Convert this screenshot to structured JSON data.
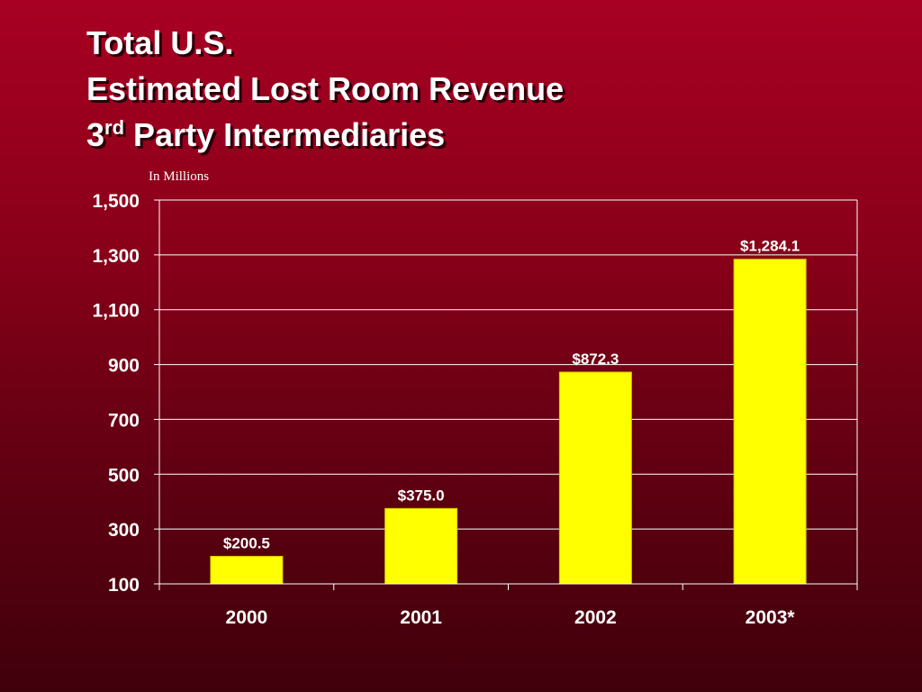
{
  "slide": {
    "title_line1": "Total U.S.",
    "title_line2": "Estimated Lost Room Revenue",
    "title_line3_prefix": "3",
    "title_line3_sup": "rd",
    "title_line3_rest": " Party Intermediaries",
    "units": "In Millions"
  },
  "chart_data": {
    "type": "bar",
    "title": "Total U.S. Estimated Lost Room Revenue 3rd Party Intermediaries",
    "ylabel": "In Millions",
    "xlabel": "",
    "categories": [
      "2000",
      "2001",
      "2002",
      "2003*"
    ],
    "values": [
      200.5,
      375.0,
      872.3,
      1284.1
    ],
    "data_labels": [
      "$200.5",
      "$375.0",
      "$872.3",
      "$1,284.1"
    ],
    "ylim": [
      100,
      1500
    ],
    "yticks": [
      100,
      300,
      500,
      700,
      900,
      1100,
      1300,
      1500
    ],
    "ytick_labels": [
      "100",
      "300",
      "500",
      "700",
      "900",
      "1,100",
      "1,300",
      "1,500"
    ],
    "grid": true,
    "colors": {
      "bar": "#ffff00",
      "text": "#ffffff",
      "grid": "#ffffff"
    }
  }
}
